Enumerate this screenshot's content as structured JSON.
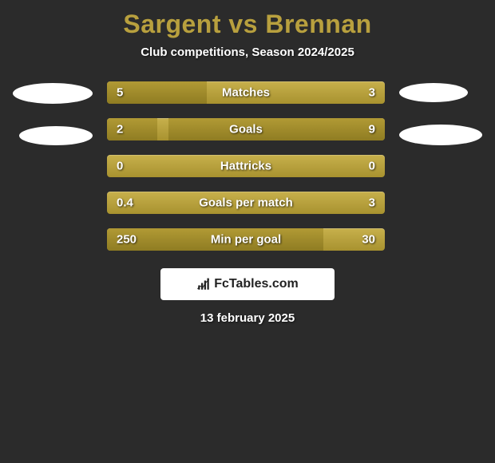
{
  "title": "Sargent vs Brennan",
  "subtitle": "Club competitions, Season 2024/2025",
  "date": "13 february 2025",
  "footer_label": "FcTables.com",
  "colors": {
    "background": "#2b2b2b",
    "accent": "#b8a03e",
    "bar_base_top": "#c7b04c",
    "bar_base_bottom": "#a8922f",
    "bar_fill_top": "#b19a35",
    "bar_fill_bottom": "#8f7c22",
    "text": "#ffffff"
  },
  "avatar_placeholder_color": "#ffffff",
  "stats": [
    {
      "label": "Matches",
      "left_value": "5",
      "right_value": "3",
      "left_pct": 36,
      "right_pct": 0
    },
    {
      "label": "Goals",
      "left_value": "2",
      "right_value": "9",
      "left_pct": 18,
      "right_pct": 78
    },
    {
      "label": "Hattricks",
      "left_value": "0",
      "right_value": "0",
      "left_pct": 0,
      "right_pct": 0
    },
    {
      "label": "Goals per match",
      "left_value": "0.4",
      "right_value": "3",
      "left_pct": 0,
      "right_pct": 0
    },
    {
      "label": "Min per goal",
      "left_value": "250",
      "right_value": "30",
      "left_pct": 78,
      "right_pct": 0
    }
  ]
}
